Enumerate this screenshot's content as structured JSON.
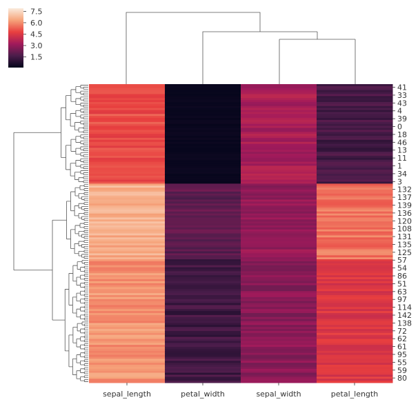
{
  "chart_data": {
    "type": "heatmap",
    "title": "",
    "columns": [
      "sepal_length",
      "petal_width",
      "sepal_width",
      "petal_length"
    ],
    "row_tick_labels": [
      "41",
      "33",
      "43",
      "4",
      "39",
      "0",
      "18",
      "46",
      "13",
      "11",
      "1",
      "34",
      "3",
      "132",
      "137",
      "139",
      "136",
      "120",
      "108",
      "131",
      "135",
      "125",
      "57",
      "54",
      "86",
      "51",
      "63",
      "97",
      "114",
      "142",
      "138",
      "72",
      "62",
      "61",
      "95",
      "55",
      "59",
      "80"
    ],
    "colorbar": {
      "ticks": [
        "7.5",
        "6.0",
        "4.5",
        "3.0",
        "1.5"
      ],
      "range": [
        0.1,
        7.9
      ],
      "colormap": "rocket"
    },
    "row_groups": [
      {
        "rows": 50,
        "values": [
          5.0,
          0.25,
          3.4,
          1.5
        ]
      },
      {
        "rows": 38,
        "values": [
          6.6,
          2.0,
          3.0,
          5.6
        ]
      },
      {
        "rows": 62,
        "values": [
          6.1,
          1.4,
          2.8,
          4.5
        ]
      }
    ],
    "row_dendrogram": "left",
    "col_dendrogram": "top"
  }
}
